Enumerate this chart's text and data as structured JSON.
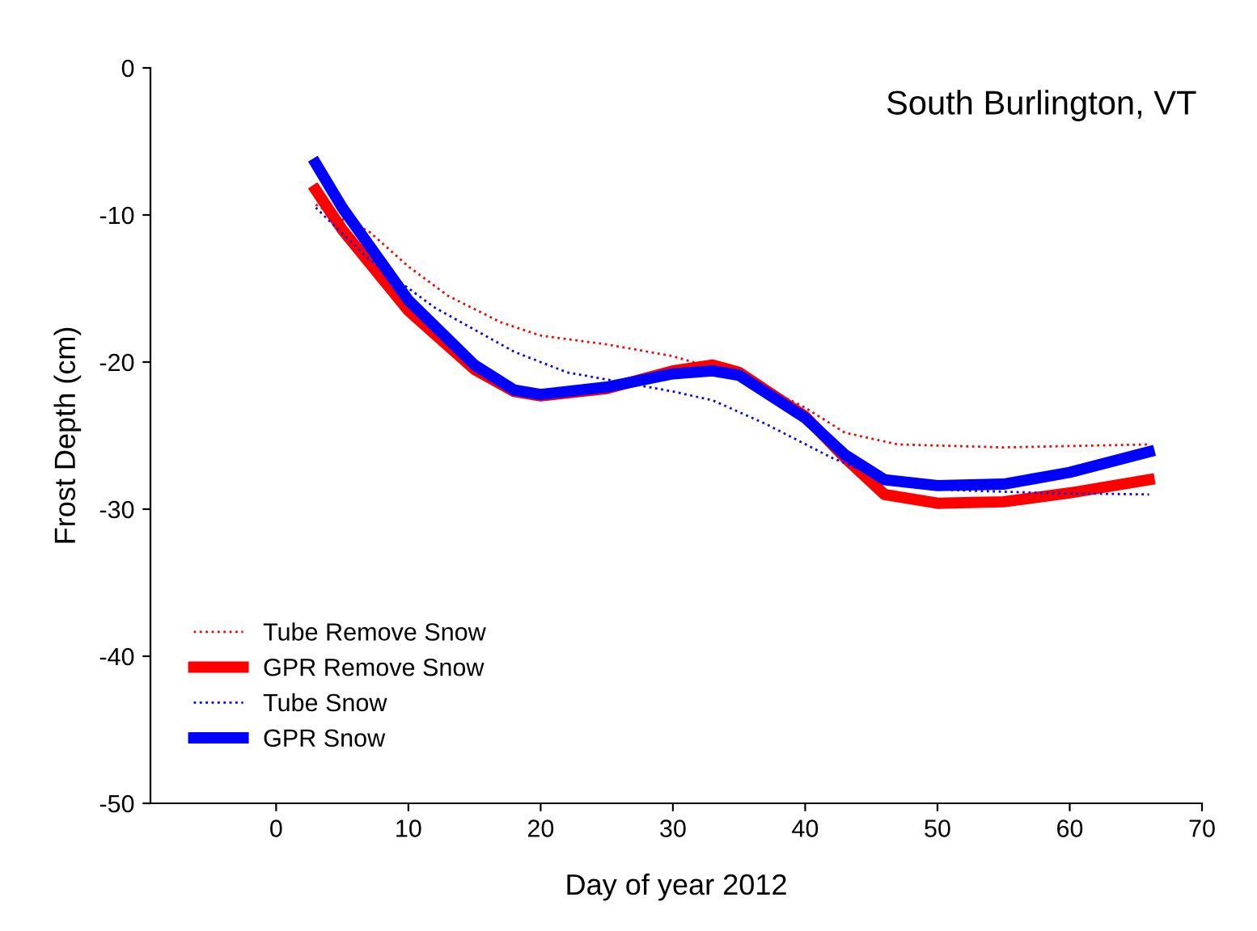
{
  "chart_data": {
    "type": "line",
    "xlabel": "Day of year 2012",
    "ylabel": "Frost Depth (cm)",
    "annotations": [
      "South Burlington, VT"
    ],
    "xlim": [
      -9.5,
      70
    ],
    "xticks": [
      0,
      10,
      20,
      30,
      40,
      50,
      60,
      70
    ],
    "ylim": [
      -50,
      0
    ],
    "yticks": [
      -50,
      -40,
      -30,
      -20,
      -10,
      0
    ],
    "grid": false,
    "legend": "bottom left",
    "series": [
      {
        "name": "Tube Remove Snow",
        "color": "#ff0000",
        "line_style": "dotted",
        "x": [
          3,
          5,
          7,
          10,
          13,
          17,
          20,
          25,
          30,
          33,
          36,
          40,
          43,
          47,
          55,
          66
        ],
        "values": [
          -9.3,
          -10.3,
          -11.1,
          -13.5,
          -15.5,
          -17.3,
          -18.2,
          -18.8,
          -19.6,
          -20.4,
          -21.3,
          -23.1,
          -24.8,
          -25.6,
          -25.8,
          -25.6
        ]
      },
      {
        "name": "GPR Remove Snow",
        "color": "#ff0000",
        "line_style": "solid",
        "x": [
          3,
          5,
          10,
          15,
          18,
          20,
          25,
          30,
          33,
          35,
          40,
          43,
          46,
          50,
          55,
          60,
          66
        ],
        "values": [
          -8.3,
          -11,
          -16.5,
          -20.5,
          -22,
          -22.3,
          -21.8,
          -20.6,
          -20.2,
          -20.7,
          -23.7,
          -26.5,
          -29,
          -29.6,
          -29.5,
          -28.9,
          -28
        ]
      },
      {
        "name": "Tube Snow",
        "color": "#0000ff",
        "line_style": "dotted",
        "x": [
          3,
          7,
          12,
          18,
          22,
          30,
          33,
          37,
          42,
          46,
          51,
          58,
          66
        ],
        "values": [
          -9.5,
          -13,
          -16.3,
          -19.3,
          -20.7,
          -22,
          -22.6,
          -24.2,
          -26.5,
          -28,
          -28.7,
          -28.9,
          -29
        ]
      },
      {
        "name": "GPR Snow",
        "color": "#0000ff",
        "line_style": "solid",
        "x": [
          3,
          5,
          10,
          15,
          18,
          20,
          25,
          30,
          33,
          35,
          40,
          43,
          46,
          50,
          55,
          60,
          66
        ],
        "values": [
          -6.5,
          -9.5,
          -15.8,
          -20.2,
          -21.9,
          -22.2,
          -21.7,
          -20.8,
          -20.6,
          -20.9,
          -23.8,
          -26.3,
          -28,
          -28.4,
          -28.3,
          -27.5,
          -26.1
        ]
      }
    ]
  }
}
